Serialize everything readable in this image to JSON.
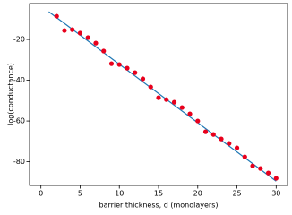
{
  "chart_data": {
    "type": "scatter",
    "xlabel": "barrier thickness, d (monolayers)",
    "ylabel": "log(conductance)",
    "xlim": [
      -1.45,
      31.45
    ],
    "xticks": [
      0,
      5,
      10,
      15,
      20,
      25,
      30
    ],
    "ylim": [
      -91.6,
      -2.4
    ],
    "yticks": [
      -20,
      -40,
      -60,
      -80
    ],
    "points": {
      "color": "#e8001c",
      "x": [
        2,
        3,
        4,
        5,
        6,
        7,
        8,
        9,
        10,
        11,
        12,
        13,
        14,
        15,
        16,
        17,
        18,
        19,
        20,
        21,
        22,
        23,
        24,
        25,
        26,
        27,
        28,
        29,
        30
      ],
      "values": [
        -8.6,
        -15.6,
        -15.2,
        -16.9,
        -19.1,
        -21.8,
        -25.7,
        -31.9,
        -32.3,
        -34.1,
        -36.3,
        -39.3,
        -43.3,
        -48.6,
        -49.5,
        -50.8,
        -53.4,
        -56.5,
        -60.0,
        -65.3,
        -66.6,
        -68.8,
        -71.0,
        -73.2,
        -77.6,
        -82.0,
        -83.3,
        -85.5,
        -88.1
      ]
    },
    "fit_line": {
      "color": "#1f77b4",
      "x": [
        1,
        30
      ],
      "values": [
        -6.4,
        -89.5
      ]
    }
  }
}
